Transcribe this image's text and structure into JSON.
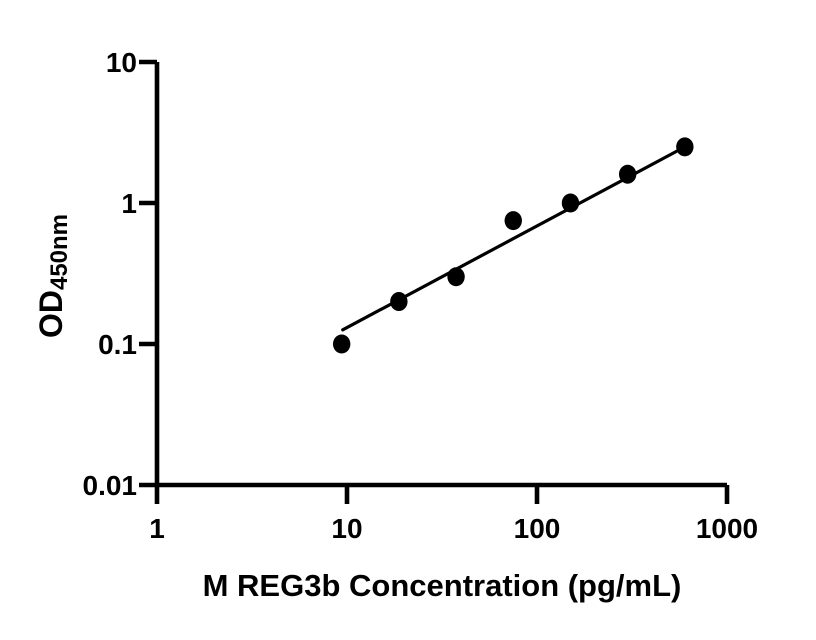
{
  "chart_data": {
    "type": "scatter",
    "title": "",
    "xlabel": "M REG3b Concentration (pg/mL)",
    "ylabel_main": "OD",
    "ylabel_sub": "450nm",
    "x_scale": "log",
    "y_scale": "log",
    "xlim": [
      1,
      1000
    ],
    "ylim": [
      0.01,
      10
    ],
    "x_ticks": [
      1,
      10,
      100,
      1000
    ],
    "x_tick_labels": [
      "1",
      "10",
      "100",
      "1000"
    ],
    "y_ticks": [
      10,
      1,
      0.1,
      0.01
    ],
    "y_tick_labels": [
      "10",
      "1",
      "0.1",
      "0.01"
    ],
    "points": [
      {
        "x": 9.375,
        "y": 0.1
      },
      {
        "x": 18.75,
        "y": 0.2
      },
      {
        "x": 37.5,
        "y": 0.3
      },
      {
        "x": 75,
        "y": 0.75
      },
      {
        "x": 150,
        "y": 1.0
      },
      {
        "x": 300,
        "y": 1.6
      },
      {
        "x": 600,
        "y": 2.5
      }
    ],
    "fit_line": {
      "x_start": 9.5,
      "y_start": 0.126,
      "x_end": 600,
      "y_end": 2.5
    },
    "grid": false,
    "legend": null,
    "marker_color": "#000000",
    "line_color": "#000000",
    "axis_color": "#000000",
    "text_color": "#000000",
    "background": "#ffffff"
  }
}
